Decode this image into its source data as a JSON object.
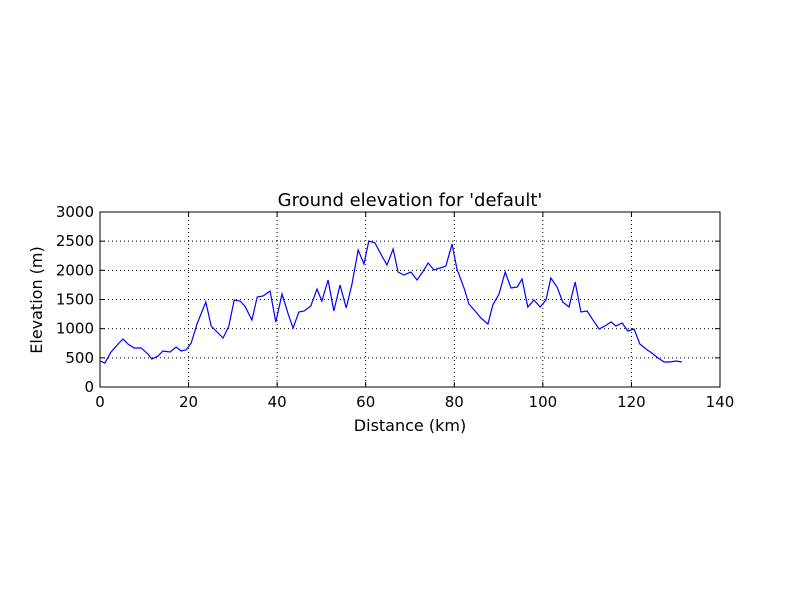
{
  "chart_data": {
    "type": "line",
    "title": "Ground elevation for 'default'",
    "xlabel": "Distance (km)",
    "ylabel": "Elevation (m)",
    "xlim": [
      0,
      140
    ],
    "xticks": [
      0,
      20,
      40,
      60,
      80,
      100,
      120,
      140
    ],
    "ylim": [
      0,
      3000
    ],
    "yticks": [
      0,
      500,
      1000,
      1500,
      2000,
      2500,
      3000
    ],
    "grid": true,
    "x": [
      0,
      1.1,
      2.5,
      4.1,
      5.2,
      6.3,
      7.7,
      9.3,
      10.8,
      11.7,
      13.1,
      14.2,
      15.8,
      17.2,
      18.3,
      19.4,
      20.6,
      21.9,
      23.9,
      25.1,
      26.2,
      27.8,
      29.1,
      30.3,
      31.6,
      32.7,
      34.3,
      35.5,
      36.8,
      38.4,
      39.7,
      41.1,
      42.5,
      43.6,
      44.9,
      46.1,
      47.6,
      49.0,
      50.1,
      51.5,
      52.8,
      54.2,
      55.6,
      56.9,
      58.3,
      59.6,
      60.7,
      62.1,
      63.4,
      64.8,
      66.2,
      67.3,
      68.6,
      70.2,
      71.6,
      73.0,
      74.1,
      75.4,
      76.8,
      78.1,
      79.5,
      80.6,
      82.2,
      83.3,
      84.7,
      86.0,
      87.6,
      88.7,
      90.1,
      91.5,
      92.8,
      94.2,
      95.3,
      96.6,
      98.0,
      99.4,
      100.7,
      101.8,
      103.2,
      104.5,
      105.9,
      107.3,
      108.6,
      110.0,
      111.3,
      112.7,
      114.0,
      115.4,
      116.5,
      117.9,
      119.2,
      120.6,
      121.9,
      123.3,
      124.6,
      126.0,
      127.4,
      128.7,
      130.1,
      131.4
    ],
    "series": [
      {
        "name": "elevation",
        "color": "#0000ff",
        "values": [
          446,
          411,
          600,
          737,
          823,
          737,
          669,
          669,
          566,
          480,
          531,
          617,
          600,
          686,
          617,
          634,
          754,
          1080,
          1457,
          1046,
          960,
          840,
          1046,
          1491,
          1474,
          1389,
          1149,
          1543,
          1560,
          1646,
          1114,
          1594,
          1251,
          1011,
          1286,
          1303,
          1389,
          1680,
          1474,
          1834,
          1303,
          1749,
          1354,
          1766,
          2349,
          2109,
          2503,
          2469,
          2280,
          2091,
          2366,
          1971,
          1920,
          1971,
          1834,
          1989,
          2126,
          2006,
          2040,
          2074,
          2451,
          2023,
          1697,
          1423,
          1303,
          1183,
          1080,
          1406,
          1594,
          1971,
          1697,
          1714,
          1851,
          1371,
          1491,
          1371,
          1491,
          1869,
          1714,
          1457,
          1371,
          1800,
          1286,
          1303,
          1149,
          994,
          1046,
          1114,
          1046,
          1097,
          960,
          994,
          737,
          651,
          583,
          497,
          429,
          429,
          446,
          429
        ]
      }
    ]
  }
}
